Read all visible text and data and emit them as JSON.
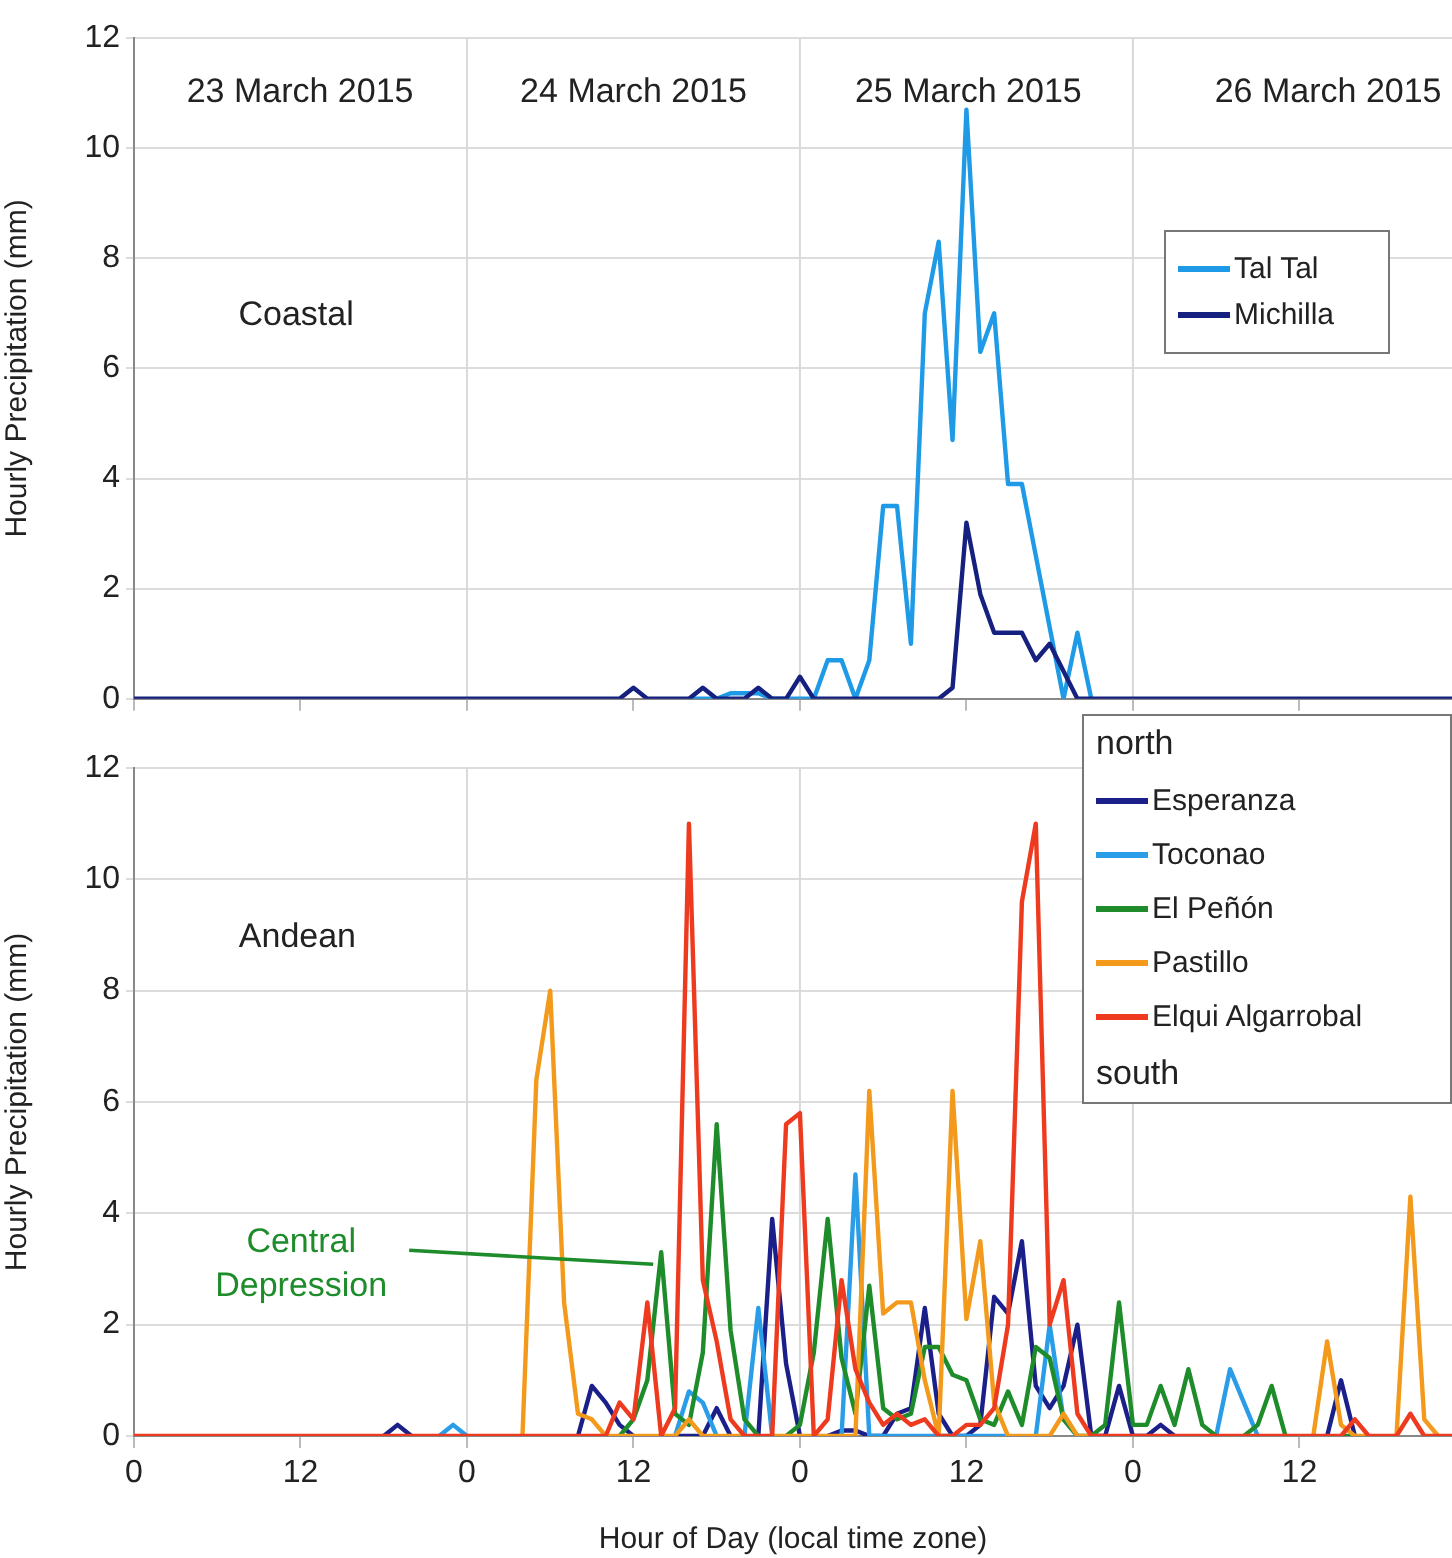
{
  "chart_data": [
    {
      "type": "line",
      "ylabel": "Hourly Precipitation (mm)",
      "x": [
        "2015-03-23T00:00",
        "2015-03-23T01:00",
        "2015-03-23T02:00",
        "2015-03-23T03:00",
        "2015-03-23T04:00",
        "2015-03-23T05:00",
        "2015-03-23T06:00",
        "2015-03-23T07:00",
        "2015-03-23T08:00",
        "2015-03-23T09:00",
        "2015-03-23T10:00",
        "2015-03-23T11:00",
        "2015-03-23T12:00",
        "2015-03-23T13:00",
        "2015-03-23T14:00",
        "2015-03-23T15:00",
        "2015-03-23T16:00",
        "2015-03-23T17:00",
        "2015-03-23T18:00",
        "2015-03-23T19:00",
        "2015-03-23T20:00",
        "2015-03-23T21:00",
        "2015-03-23T22:00",
        "2015-03-23T23:00",
        "2015-03-24T00:00",
        "2015-03-24T01:00",
        "2015-03-24T02:00",
        "2015-03-24T03:00",
        "2015-03-24T04:00",
        "2015-03-24T05:00",
        "2015-03-24T06:00",
        "2015-03-24T07:00",
        "2015-03-24T08:00",
        "2015-03-24T09:00",
        "2015-03-24T10:00",
        "2015-03-24T11:00",
        "2015-03-24T12:00",
        "2015-03-24T13:00",
        "2015-03-24T14:00",
        "2015-03-24T15:00",
        "2015-03-24T16:00",
        "2015-03-24T17:00",
        "2015-03-24T18:00",
        "2015-03-24T19:00",
        "2015-03-24T20:00",
        "2015-03-24T21:00",
        "2015-03-24T22:00",
        "2015-03-24T23:00",
        "2015-03-25T00:00",
        "2015-03-25T01:00",
        "2015-03-25T02:00",
        "2015-03-25T03:00",
        "2015-03-25T04:00",
        "2015-03-25T05:00",
        "2015-03-25T06:00",
        "2015-03-25T07:00",
        "2015-03-25T08:00",
        "2015-03-25T09:00",
        "2015-03-25T10:00",
        "2015-03-25T11:00",
        "2015-03-25T12:00",
        "2015-03-25T13:00",
        "2015-03-25T14:00",
        "2015-03-25T15:00",
        "2015-03-25T16:00",
        "2015-03-25T17:00",
        "2015-03-25T18:00",
        "2015-03-25T19:00",
        "2015-03-25T20:00",
        "2015-03-25T21:00",
        "2015-03-25T22:00",
        "2015-03-25T23:00",
        "2015-03-26T00:00",
        "2015-03-26T01:00",
        "2015-03-26T02:00",
        "2015-03-26T03:00",
        "2015-03-26T04:00",
        "2015-03-26T05:00",
        "2015-03-26T06:00",
        "2015-03-26T07:00",
        "2015-03-26T08:00",
        "2015-03-26T09:00",
        "2015-03-26T10:00",
        "2015-03-26T11:00",
        "2015-03-26T12:00",
        "2015-03-26T13:00",
        "2015-03-26T14:00",
        "2015-03-26T15:00",
        "2015-03-26T16:00",
        "2015-03-26T17:00",
        "2015-03-26T18:00",
        "2015-03-26T19:00",
        "2015-03-26T20:00",
        "2015-03-26T21:00",
        "2015-03-26T22:00",
        "2015-03-26T23:00"
      ],
      "series": [
        {
          "name": "Tal Tal",
          "color": "#1e9ae6",
          "values": [
            null,
            null,
            null,
            null,
            null,
            null,
            null,
            null,
            null,
            null,
            null,
            null,
            null,
            null,
            null,
            null,
            null,
            null,
            null,
            null,
            null,
            null,
            null,
            null,
            null,
            null,
            null,
            null,
            null,
            null,
            null,
            null,
            null,
            null,
            null,
            null,
            null,
            null,
            null,
            null,
            0,
            0,
            0,
            0.1,
            0.1,
            0.1,
            0,
            0,
            0,
            0,
            0.7,
            0.7,
            0,
            0.7,
            3.5,
            3.5,
            1.0,
            7.0,
            8.3,
            4.7,
            10.7,
            6.3,
            7.0,
            3.9,
            3.9,
            2.6,
            1.3,
            0,
            1.2,
            0,
            null,
            null,
            null,
            null,
            null,
            null,
            null,
            null,
            null,
            null,
            null,
            null,
            null,
            null,
            null,
            null,
            null,
            null,
            null,
            null,
            null,
            null,
            null,
            null,
            null,
            null
          ]
        },
        {
          "name": "Michilla",
          "color": "#15207f",
          "values": [
            0,
            0,
            0,
            0,
            0,
            0,
            0,
            0,
            0,
            0,
            0,
            0,
            0,
            0,
            0,
            0,
            0,
            0,
            0,
            0,
            0,
            0,
            0,
            0,
            0,
            0,
            0,
            0,
            0,
            0,
            0,
            0,
            0,
            0,
            0,
            0,
            0.2,
            0,
            0,
            0,
            0,
            0.2,
            0,
            0,
            0,
            0.2,
            0,
            0,
            0.4,
            0,
            0,
            0,
            0,
            0,
            0,
            0,
            0,
            0,
            0,
            0.2,
            3.2,
            1.9,
            1.2,
            1.2,
            1.2,
            0.7,
            1.0,
            0.5,
            0,
            0,
            0,
            0,
            0,
            0,
            0,
            0,
            0,
            0,
            0,
            0,
            0,
            0,
            0,
            0,
            0,
            0,
            0,
            0,
            0,
            0,
            0,
            0,
            0,
            0,
            0,
            0
          ]
        }
      ],
      "xlim": [
        "2015-03-23T00:00",
        "2015-03-26T23:00"
      ],
      "xticks": [
        {
          "value": "2015-03-23T00:00",
          "label": null
        },
        {
          "value": "2015-03-23T12:00",
          "label": null
        },
        {
          "value": "2015-03-24T00:00",
          "label": null
        },
        {
          "value": "2015-03-24T12:00",
          "label": null
        },
        {
          "value": "2015-03-25T00:00",
          "label": null
        },
        {
          "value": "2015-03-25T12:00",
          "label": null
        },
        {
          "value": "2015-03-26T00:00",
          "label": null
        },
        {
          "value": "2015-03-26T12:00",
          "label": null
        }
      ],
      "ylim": [
        0,
        12
      ],
      "yticks": [
        0,
        2,
        4,
        6,
        8,
        10,
        12
      ],
      "tick_labels": "y",
      "grid": "y",
      "legend": "top right",
      "marker": "none",
      "ref_lines": [
        {
          "axis": "x",
          "value": "2015-03-24T00:00",
          "color": "#d9d9d9"
        },
        {
          "axis": "x",
          "value": "2015-03-25T00:00",
          "color": "#d9d9d9"
        },
        {
          "axis": "x",
          "value": "2015-03-26T00:00",
          "color": "#d9d9d9"
        }
      ],
      "annotations": [
        "23 March 2015",
        "24 March 2015",
        "25 March 2015",
        "26 March 2015",
        "Coastal"
      ]
    },
    {
      "type": "line",
      "ylabel": "Hourly Precipitation (mm)",
      "xlabel": "Hour of Day (local time zone)",
      "legend_title": "north",
      "x": [
        "2015-03-23T00:00",
        "2015-03-23T01:00",
        "2015-03-23T02:00",
        "2015-03-23T03:00",
        "2015-03-23T04:00",
        "2015-03-23T05:00",
        "2015-03-23T06:00",
        "2015-03-23T07:00",
        "2015-03-23T08:00",
        "2015-03-23T09:00",
        "2015-03-23T10:00",
        "2015-03-23T11:00",
        "2015-03-23T12:00",
        "2015-03-23T13:00",
        "2015-03-23T14:00",
        "2015-03-23T15:00",
        "2015-03-23T16:00",
        "2015-03-23T17:00",
        "2015-03-23T18:00",
        "2015-03-23T19:00",
        "2015-03-23T20:00",
        "2015-03-23T21:00",
        "2015-03-23T22:00",
        "2015-03-23T23:00",
        "2015-03-24T00:00",
        "2015-03-24T01:00",
        "2015-03-24T02:00",
        "2015-03-24T03:00",
        "2015-03-24T04:00",
        "2015-03-24T05:00",
        "2015-03-24T06:00",
        "2015-03-24T07:00",
        "2015-03-24T08:00",
        "2015-03-24T09:00",
        "2015-03-24T10:00",
        "2015-03-24T11:00",
        "2015-03-24T12:00",
        "2015-03-24T13:00",
        "2015-03-24T14:00",
        "2015-03-24T15:00",
        "2015-03-24T16:00",
        "2015-03-24T17:00",
        "2015-03-24T18:00",
        "2015-03-24T19:00",
        "2015-03-24T20:00",
        "2015-03-24T21:00",
        "2015-03-24T22:00",
        "2015-03-24T23:00",
        "2015-03-25T00:00",
        "2015-03-25T01:00",
        "2015-03-25T02:00",
        "2015-03-25T03:00",
        "2015-03-25T04:00",
        "2015-03-25T05:00",
        "2015-03-25T06:00",
        "2015-03-25T07:00",
        "2015-03-25T08:00",
        "2015-03-25T09:00",
        "2015-03-25T10:00",
        "2015-03-25T11:00",
        "2015-03-25T12:00",
        "2015-03-25T13:00",
        "2015-03-25T14:00",
        "2015-03-25T15:00",
        "2015-03-25T16:00",
        "2015-03-25T17:00",
        "2015-03-25T18:00",
        "2015-03-25T19:00",
        "2015-03-25T20:00",
        "2015-03-25T21:00",
        "2015-03-25T22:00",
        "2015-03-25T23:00",
        "2015-03-26T00:00",
        "2015-03-26T01:00",
        "2015-03-26T02:00",
        "2015-03-26T03:00",
        "2015-03-26T04:00",
        "2015-03-26T05:00",
        "2015-03-26T06:00",
        "2015-03-26T07:00",
        "2015-03-26T08:00",
        "2015-03-26T09:00",
        "2015-03-26T10:00",
        "2015-03-26T11:00",
        "2015-03-26T12:00",
        "2015-03-26T13:00",
        "2015-03-26T14:00",
        "2015-03-26T15:00",
        "2015-03-26T16:00",
        "2015-03-26T17:00",
        "2015-03-26T18:00",
        "2015-03-26T19:00",
        "2015-03-26T20:00",
        "2015-03-26T21:00",
        "2015-03-26T22:00",
        "2015-03-26T23:00"
      ],
      "series": [
        {
          "name": "Esperanza",
          "color": "#1a1f8a",
          "values": [
            null,
            null,
            null,
            null,
            null,
            null,
            null,
            null,
            null,
            null,
            null,
            null,
            null,
            null,
            null,
            null,
            null,
            null,
            0,
            0.2,
            0,
            null,
            null,
            null,
            null,
            null,
            null,
            null,
            null,
            null,
            null,
            null,
            0,
            0.9,
            0.6,
            0.2,
            0,
            null,
            null,
            0,
            0,
            0,
            0.5,
            0,
            null,
            0,
            3.9,
            1.3,
            0,
            null,
            0,
            0.1,
            0.1,
            0,
            0,
            0.4,
            0.5,
            2.3,
            0.4,
            0,
            0,
            0.2,
            2.5,
            2.2,
            3.5,
            0.9,
            0.5,
            0.9,
            2.0,
            0,
            0,
            0.9,
            0,
            0,
            0.2,
            0,
            null,
            null,
            null,
            null,
            null,
            null,
            null,
            null,
            null,
            null,
            0,
            1.0,
            0,
            null,
            null,
            null,
            null,
            null,
            null,
            null
          ]
        },
        {
          "name": "Toconao",
          "color": "#2a9de8",
          "values": [
            null,
            null,
            null,
            null,
            null,
            null,
            null,
            null,
            null,
            null,
            null,
            null,
            null,
            null,
            null,
            null,
            null,
            null,
            null,
            null,
            null,
            null,
            0,
            0.2,
            0,
            null,
            null,
            null,
            null,
            null,
            null,
            null,
            null,
            null,
            null,
            null,
            null,
            null,
            null,
            0,
            0.8,
            0.6,
            0,
            null,
            0,
            2.3,
            0,
            null,
            null,
            null,
            null,
            0,
            4.7,
            0,
            0,
            0,
            0,
            0,
            0,
            0,
            0,
            0,
            0,
            0,
            null,
            0,
            2.0,
            0.3,
            0,
            null,
            null,
            null,
            null,
            null,
            null,
            null,
            null,
            null,
            0,
            1.2,
            0.6,
            0,
            null,
            null,
            null,
            null,
            null,
            null,
            null,
            null,
            null,
            null,
            null,
            null,
            null,
            null
          ]
        },
        {
          "name": "El Peñón",
          "color": "#1e8c2a",
          "values": [
            null,
            null,
            null,
            null,
            null,
            null,
            null,
            null,
            null,
            null,
            null,
            null,
            null,
            null,
            null,
            null,
            null,
            null,
            null,
            null,
            null,
            null,
            null,
            null,
            null,
            null,
            null,
            null,
            null,
            null,
            null,
            null,
            null,
            null,
            null,
            0,
            0.3,
            1.0,
            3.3,
            0.4,
            0.2,
            1.5,
            5.6,
            1.9,
            0.3,
            0,
            null,
            0,
            0.2,
            1.5,
            3.9,
            1.4,
            0.4,
            2.7,
            0.5,
            0.3,
            0.4,
            1.6,
            1.6,
            1.1,
            1.0,
            0.3,
            0.2,
            0.8,
            0.2,
            1.6,
            1.4,
            0.3,
            0,
            0,
            0.2,
            2.4,
            0.2,
            0.2,
            0.9,
            0.2,
            1.2,
            0.2,
            0,
            null,
            0,
            0.2,
            0.9,
            0,
            null,
            null,
            null,
            0,
            0,
            null,
            null,
            null,
            null,
            null,
            null,
            null
          ]
        },
        {
          "name": "Pastillo",
          "color": "#f39a1c",
          "values": [
            null,
            null,
            null,
            null,
            null,
            null,
            null,
            null,
            null,
            null,
            null,
            null,
            null,
            null,
            null,
            null,
            null,
            null,
            null,
            null,
            null,
            null,
            null,
            null,
            null,
            null,
            null,
            null,
            0,
            6.4,
            8.0,
            2.4,
            0.4,
            0.3,
            0,
            0,
            0,
            0,
            0,
            0,
            0.3,
            0,
            0,
            0,
            0,
            null,
            0,
            0,
            0,
            0,
            0,
            0,
            0,
            6.2,
            2.2,
            2.4,
            2.4,
            1.0,
            0,
            6.2,
            2.1,
            3.5,
            0.6,
            0,
            0,
            0,
            0,
            0.4,
            0,
            0,
            null,
            null,
            null,
            null,
            null,
            null,
            null,
            null,
            null,
            null,
            null,
            null,
            null,
            null,
            null,
            0,
            1.7,
            0.2,
            0,
            0,
            null,
            0,
            4.3,
            0.3,
            0,
            null
          ]
        },
        {
          "name": "Elqui Algarrobal",
          "color": "#ee3a1f",
          "values": [
            0,
            0,
            0,
            0,
            0,
            0,
            0,
            0,
            0,
            0,
            0,
            0,
            0,
            0,
            0,
            0,
            0,
            0,
            0,
            0,
            0,
            0,
            0,
            0,
            0,
            0,
            0,
            0,
            0,
            0,
            0,
            0,
            0,
            0,
            0,
            0.6,
            0.3,
            2.4,
            0,
            0.5,
            11.0,
            2.8,
            1.7,
            0.3,
            0,
            0,
            0,
            5.6,
            5.8,
            0,
            0.3,
            2.8,
            1.2,
            0.6,
            0.2,
            0.4,
            0.2,
            0.3,
            0,
            0,
            0.2,
            0.2,
            0.5,
            2.0,
            9.6,
            11.0,
            2.0,
            2.8,
            0.4,
            0,
            0,
            0,
            0,
            0,
            0,
            0,
            0,
            0,
            0,
            0,
            0,
            0,
            0,
            0,
            0,
            0,
            0,
            0,
            0.3,
            0,
            0,
            0,
            0.4,
            0,
            0,
            0
          ]
        }
      ],
      "xlim": [
        "2015-03-23T00:00",
        "2015-03-26T23:00"
      ],
      "xticks": [
        {
          "value": "2015-03-23T00:00",
          "label": "0"
        },
        {
          "value": "2015-03-23T12:00",
          "label": "12"
        },
        {
          "value": "2015-03-24T00:00",
          "label": "0"
        },
        {
          "value": "2015-03-24T12:00",
          "label": "12"
        },
        {
          "value": "2015-03-25T00:00",
          "label": "0"
        },
        {
          "value": "2015-03-25T12:00",
          "label": "12"
        },
        {
          "value": "2015-03-26T00:00",
          "label": "0"
        },
        {
          "value": "2015-03-26T12:00",
          "label": "12"
        }
      ],
      "ylim": [
        0,
        12
      ],
      "yticks": [
        0,
        2,
        4,
        6,
        8,
        10,
        12
      ],
      "grid": "y",
      "legend": "top right",
      "marker": "none",
      "ref_lines": [
        {
          "axis": "x",
          "value": "2015-03-24T00:00",
          "color": "#d9d9d9"
        },
        {
          "axis": "x",
          "value": "2015-03-25T00:00",
          "color": "#d9d9d9"
        },
        {
          "axis": "x",
          "value": "2015-03-26T00:00",
          "color": "#d9d9d9"
        }
      ],
      "annotations": [
        "Andean",
        {
          "text": "Central Depression",
          "x": "2015-03-24T14:00",
          "y": 3.3
        },
        "south"
      ]
    }
  ]
}
